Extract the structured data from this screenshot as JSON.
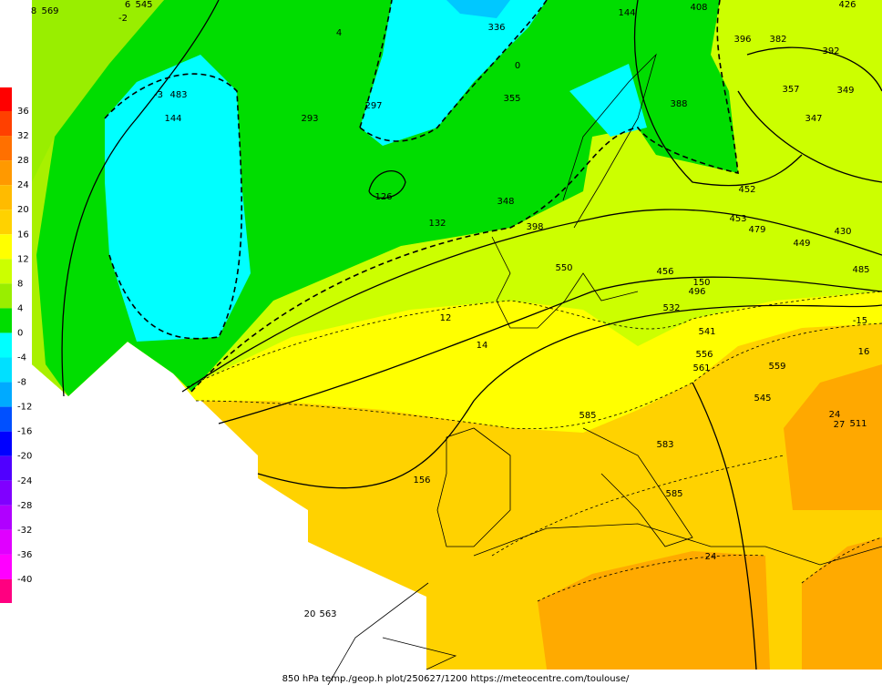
{
  "colorbar": {
    "labels": [
      36,
      32,
      28,
      24,
      20,
      16,
      12,
      8,
      4,
      0,
      -4,
      -8,
      -12,
      -16,
      -20,
      -24,
      -28,
      -32,
      -36,
      -40
    ],
    "colors": [
      "#ff0000",
      "#ff4000",
      "#ff7000",
      "#ff9900",
      "#ffbb00",
      "#ffd200",
      "#ffff00",
      "#ccff00",
      "#99ee00",
      "#00dd00",
      "#00ffff",
      "#00e0ff",
      "#00aaff",
      "#0050ff",
      "#0000ff",
      "#5000ff",
      "#8000ff",
      "#b000ff",
      "#e000ff",
      "#ff00ff",
      "#ff0080"
    ]
  },
  "map_labels": [
    "8",
    "569",
    "6",
    "545",
    "-2",
    "4",
    "336",
    "144",
    "408",
    "426",
    "396",
    "382",
    "392",
    "483",
    "-3",
    "144",
    "297",
    "293",
    "355",
    "0",
    "388",
    "357",
    "349",
    "347",
    "126",
    "132",
    "348",
    "398",
    "452",
    "453",
    "479",
    "449",
    "430",
    "485",
    "550",
    "456",
    "150",
    "496",
    "532",
    "541",
    "12",
    "14",
    "561",
    "556",
    "559",
    "545",
    "156",
    "585",
    "583",
    "585",
    "24",
    "511",
    "27",
    "20",
    "563",
    "-15",
    "16",
    "24"
  ],
  "footer": "850 hPa temp./geop.h plot/250627/1200 https://meteocentre.com/toulouse/"
}
